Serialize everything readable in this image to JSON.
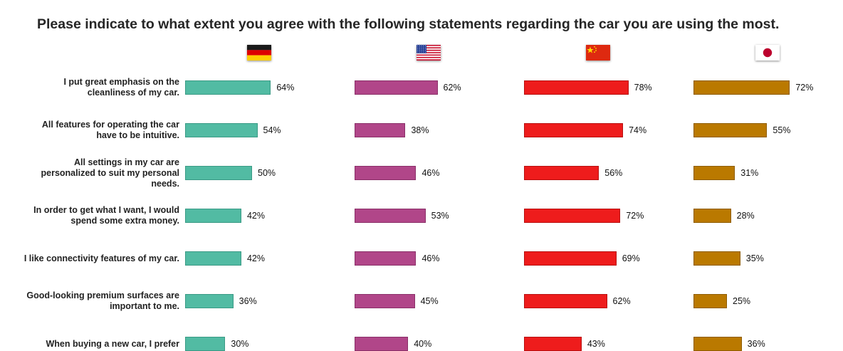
{
  "title": "Please indicate to what extent you agree with the following statements regarding the car you are using the most.",
  "chart_data": {
    "type": "bar",
    "orientation": "horizontal",
    "unit": "%",
    "categories": [
      "I put great emphasis on the cleanliness of my car.",
      "All features for operating the car have to be intuitive.",
      "All settings in my car are personalized to suit my personal needs.",
      "In order to get what I want, I would spend some extra money.",
      "I like connectivity features of my car.",
      "Good-looking premium surfaces are important to me.",
      "When buying a new car, I prefer"
    ],
    "series": [
      {
        "flag": "germany-flag-icon",
        "color": "#52bba3",
        "border": "#3a9a85",
        "values": [
          64,
          54,
          50,
          42,
          42,
          36,
          30
        ]
      },
      {
        "flag": "usa-flag-icon",
        "color": "#b14689",
        "border": "#8a2f68",
        "values": [
          62,
          38,
          46,
          53,
          46,
          45,
          40
        ]
      },
      {
        "flag": "china-flag-icon",
        "color": "#ee1c1c",
        "border": "#b80f0f",
        "values": [
          78,
          74,
          56,
          72,
          69,
          62,
          43
        ]
      },
      {
        "flag": "japan-flag-icon",
        "color": "#ba7900",
        "border": "#8e5c00",
        "values": [
          72,
          55,
          31,
          28,
          35,
          25,
          36
        ]
      }
    ]
  }
}
